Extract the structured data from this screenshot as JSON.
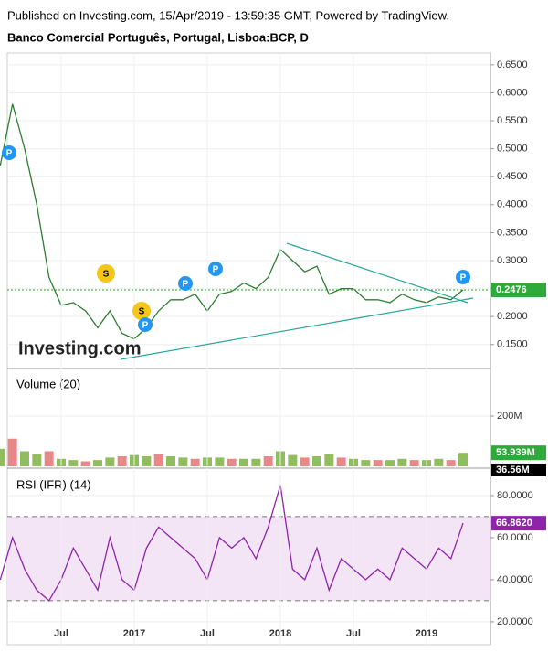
{
  "header": {
    "published": "Published on Investing.com, 15/Apr/2019 - 13:59:35 GMT, Powered by TradingView.",
    "title": "Banco Comercial Português, Portugal, Lisboa:BCP, D"
  },
  "chart_data": [
    {
      "type": "line",
      "watermark": "Investing.com",
      "color": "#2e7d32",
      "x": [
        "2016-02",
        "2016-03",
        "2016-04",
        "2016-05",
        "2016-06",
        "2016-07",
        "2016-08",
        "2016-09",
        "2016-10",
        "2016-11",
        "2016-12",
        "2017-01",
        "2017-02",
        "2017-03",
        "2017-04",
        "2017-05",
        "2017-06",
        "2017-07",
        "2017-08",
        "2017-09",
        "2017-10",
        "2017-11",
        "2017-12",
        "2018-01",
        "2018-02",
        "2018-03",
        "2018-04",
        "2018-05",
        "2018-06",
        "2018-07",
        "2018-08",
        "2018-09",
        "2018-10",
        "2018-11",
        "2018-12",
        "2019-01",
        "2019-02",
        "2019-03",
        "2019-04"
      ],
      "values": [
        0.47,
        0.58,
        0.5,
        0.4,
        0.27,
        0.22,
        0.225,
        0.21,
        0.18,
        0.21,
        0.17,
        0.16,
        0.18,
        0.21,
        0.23,
        0.23,
        0.24,
        0.21,
        0.24,
        0.245,
        0.26,
        0.25,
        0.27,
        0.32,
        0.3,
        0.28,
        0.29,
        0.24,
        0.25,
        0.25,
        0.23,
        0.23,
        0.225,
        0.24,
        0.23,
        0.225,
        0.235,
        0.23,
        0.2476
      ],
      "current_value": {
        "value": 0.2476,
        "label": "0.2476"
      },
      "markers": [
        "P",
        "S",
        "S",
        "P",
        "P",
        "P",
        "P"
      ],
      "ylim": [
        0.112,
        0.671
      ],
      "yticks": [
        {
          "value": 0.15,
          "label": "0.1500"
        },
        {
          "value": 0.2,
          "label": "0.2000"
        },
        {
          "value": 0.25,
          "label": "0.2500"
        },
        {
          "value": 0.3,
          "label": "0.3000"
        },
        {
          "value": 0.35,
          "label": "0.3500"
        },
        {
          "value": 0.4,
          "label": "0.4000"
        },
        {
          "value": 0.45,
          "label": "0.4500"
        },
        {
          "value": 0.5,
          "label": "0.5000"
        },
        {
          "value": 0.55,
          "label": "0.5500"
        },
        {
          "value": 0.6,
          "label": "0.6000"
        },
        {
          "value": 0.65,
          "label": "0.6500"
        }
      ],
      "grid": true
    },
    {
      "type": "bar",
      "title": "Volume (20)",
      "color": "#7cb342",
      "x": [
        "2016-02",
        "2016-03",
        "2016-04",
        "2016-05",
        "2016-06",
        "2016-07",
        "2016-08",
        "2016-09",
        "2016-10",
        "2016-11",
        "2016-12",
        "2017-01",
        "2017-02",
        "2017-03",
        "2017-04",
        "2017-05",
        "2017-06",
        "2017-07",
        "2017-08",
        "2017-09",
        "2017-10",
        "2017-11",
        "2017-12",
        "2018-01",
        "2018-02",
        "2018-03",
        "2018-04",
        "2018-05",
        "2018-06",
        "2018-07",
        "2018-08",
        "2018-09",
        "2018-10",
        "2018-11",
        "2018-12",
        "2019-01",
        "2019-02",
        "2019-03",
        "2019-04"
      ],
      "values": [
        70,
        110,
        60,
        50,
        60,
        30,
        25,
        20,
        25,
        35,
        40,
        45,
        40,
        50,
        40,
        35,
        30,
        35,
        35,
        30,
        30,
        30,
        40,
        60,
        45,
        35,
        40,
        50,
        35,
        30,
        25,
        25,
        25,
        30,
        25,
        25,
        30,
        25,
        53.939
      ],
      "current_value": {
        "value": 53.939,
        "label": "53.939M"
      },
      "ma_value": {
        "value": 36.56,
        "label": "36.56M"
      },
      "ylim": [
        0,
        382
      ],
      "yticks": [
        {
          "value": 200,
          "label": "200M"
        }
      ],
      "grid": true
    },
    {
      "type": "line",
      "title": "RSI (IFR) (14)",
      "color": "#8e24aa",
      "x": [
        "2016-02",
        "2016-03",
        "2016-04",
        "2016-05",
        "2016-06",
        "2016-07",
        "2016-08",
        "2016-09",
        "2016-10",
        "2016-11",
        "2016-12",
        "2017-01",
        "2017-02",
        "2017-03",
        "2017-04",
        "2017-05",
        "2017-06",
        "2017-07",
        "2017-08",
        "2017-09",
        "2017-10",
        "2017-11",
        "2017-12",
        "2018-01",
        "2018-02",
        "2018-03",
        "2018-04",
        "2018-05",
        "2018-06",
        "2018-07",
        "2018-08",
        "2018-09",
        "2018-10",
        "2018-11",
        "2018-12",
        "2019-01",
        "2019-02",
        "2019-03",
        "2019-04"
      ],
      "values": [
        40,
        60,
        45,
        35,
        30,
        40,
        55,
        45,
        35,
        60,
        40,
        35,
        55,
        65,
        60,
        55,
        50,
        40,
        60,
        55,
        60,
        50,
        65,
        85,
        45,
        40,
        55,
        35,
        50,
        45,
        40,
        45,
        40,
        55,
        50,
        45,
        55,
        50,
        66.862
      ],
      "current_value": {
        "value": 66.862,
        "label": "66.8620"
      },
      "bands": [
        30,
        70
      ],
      "ylim": [
        9.1,
        91.7
      ],
      "yticks": [
        {
          "value": 20,
          "label": "20.0000"
        },
        {
          "value": 40,
          "label": "40.0000"
        },
        {
          "value": 60,
          "label": "60.0000"
        },
        {
          "value": 80,
          "label": "80.0000"
        }
      ],
      "xticks": [
        {
          "value": "2016-07",
          "label": "Jul"
        },
        {
          "value": "2017-01",
          "label": "2017"
        },
        {
          "value": "2017-07",
          "label": "Jul"
        },
        {
          "value": "2018-01",
          "label": "2018"
        },
        {
          "value": "2018-07",
          "label": "Jul"
        },
        {
          "value": "2019-01",
          "label": "2019"
        }
      ],
      "grid": true
    }
  ]
}
